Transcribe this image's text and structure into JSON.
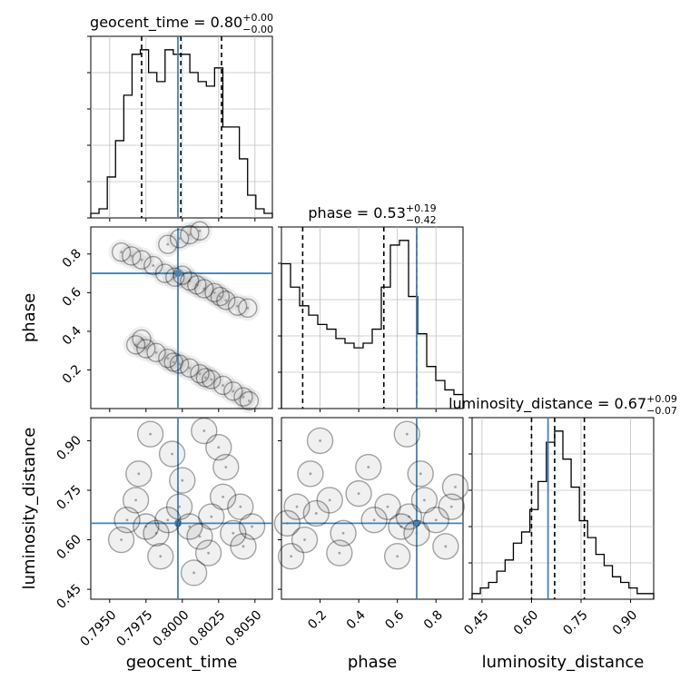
{
  "chart_data": {
    "type": "corner",
    "parameters": [
      {
        "name": "geocent_time",
        "range": [
          0.7937,
          0.8062
        ],
        "ticks": [
          0.795,
          0.7975,
          0.8,
          0.8025,
          0.805
        ],
        "tick_labels": [
          "0.7950",
          "0.7975",
          "0.8000",
          "0.8025",
          "0.8050"
        ],
        "truth": 0.7997,
        "quantiles": [
          0.7972,
          0.7999,
          0.8027
        ],
        "title_text": "geocent_time = 0.80",
        "title_sup": "+0.00",
        "title_sub": "−0.00",
        "hist_values": [
          1,
          2,
          9,
          17,
          27,
          36,
          37,
          32,
          30,
          37,
          36,
          36,
          32,
          30,
          29,
          33,
          20,
          20,
          13,
          5,
          2,
          1
        ]
      },
      {
        "name": "phase",
        "range": [
          0.0,
          0.94
        ],
        "ticks": [
          0.2,
          0.4,
          0.6,
          0.8
        ],
        "tick_labels": [
          "0.2",
          "0.4",
          "0.6",
          "0.8"
        ],
        "truth": 0.7,
        "quantiles": [
          0.11,
          0.53,
          0.7
        ],
        "title_text": "phase = 0.53",
        "title_sup": "+0.19",
        "title_sub": "−0.42",
        "hist_values": [
          31,
          26,
          22,
          20,
          18,
          17,
          15,
          14,
          13,
          14,
          17,
          26,
          35,
          36,
          24,
          16,
          9,
          6,
          4,
          3
        ]
      },
      {
        "name": "luminosity_distance",
        "range": [
          0.42,
          0.97
        ],
        "ticks": [
          0.45,
          0.6,
          0.75,
          0.9
        ],
        "tick_labels": [
          "0.45",
          "0.60",
          "0.75",
          "0.90"
        ],
        "truth": 0.65,
        "quantiles": [
          0.6,
          0.67,
          0.76
        ],
        "title_text": "luminosity_distance = 0.67",
        "title_sup": "+0.09",
        "title_sub": "−0.07",
        "hist_values": [
          1,
          2,
          3,
          5,
          7,
          10,
          12,
          16,
          21,
          28,
          30,
          25,
          20,
          14,
          11,
          8,
          6,
          4,
          3,
          2,
          1,
          1
        ]
      }
    ],
    "scatter": {
      "phase_vs_geocent_time": [
        [
          0.7972,
          0.77
        ],
        [
          0.798,
          0.74
        ],
        [
          0.7988,
          0.7
        ],
        [
          0.7995,
          0.68
        ],
        [
          0.8005,
          0.66
        ],
        [
          0.8015,
          0.62
        ],
        [
          0.8022,
          0.6
        ],
        [
          0.803,
          0.56
        ],
        [
          0.8038,
          0.53
        ],
        [
          0.8045,
          0.52
        ],
        [
          0.7958,
          0.81
        ],
        [
          0.7965,
          0.79
        ],
        [
          0.8,
          0.69
        ],
        [
          0.801,
          0.64
        ],
        [
          0.8026,
          0.58
        ],
        [
          0.7968,
          0.33
        ],
        [
          0.7975,
          0.31
        ],
        [
          0.7982,
          0.29
        ],
        [
          0.799,
          0.26
        ],
        [
          0.7998,
          0.23
        ],
        [
          0.8005,
          0.21
        ],
        [
          0.8012,
          0.18
        ],
        [
          0.802,
          0.15
        ],
        [
          0.8028,
          0.12
        ],
        [
          0.8035,
          0.09
        ],
        [
          0.8042,
          0.06
        ],
        [
          0.8046,
          0.04
        ],
        [
          0.7972,
          0.36
        ],
        [
          0.7994,
          0.24
        ],
        [
          0.8016,
          0.16
        ],
        [
          0.799,
          0.85
        ],
        [
          0.7998,
          0.88
        ],
        [
          0.8005,
          0.9
        ],
        [
          0.8012,
          0.92
        ]
      ],
      "luminosity_distance_vs_geocent_time": [
        [
          0.7962,
          0.66
        ],
        [
          0.7968,
          0.72
        ],
        [
          0.7975,
          0.64
        ],
        [
          0.7982,
          0.62
        ],
        [
          0.799,
          0.66
        ],
        [
          0.7998,
          0.7
        ],
        [
          0.8005,
          0.64
        ],
        [
          0.8012,
          0.61
        ],
        [
          0.802,
          0.67
        ],
        [
          0.8028,
          0.73
        ],
        [
          0.8035,
          0.62
        ],
        [
          0.8042,
          0.58
        ],
        [
          0.797,
          0.8
        ],
        [
          0.7985,
          0.55
        ],
        [
          0.8,
          0.78
        ],
        [
          0.8018,
          0.56
        ],
        [
          0.803,
          0.82
        ],
        [
          0.804,
          0.7
        ],
        [
          0.7958,
          0.6
        ],
        [
          0.7993,
          0.86
        ],
        [
          0.8008,
          0.5
        ],
        [
          0.8025,
          0.88
        ],
        [
          0.8048,
          0.64
        ],
        [
          0.7978,
          0.92
        ],
        [
          0.8015,
          0.93
        ]
      ],
      "luminosity_distance_vs_phase": [
        [
          0.03,
          0.65
        ],
        [
          0.08,
          0.7
        ],
        [
          0.12,
          0.6
        ],
        [
          0.18,
          0.68
        ],
        [
          0.25,
          0.72
        ],
        [
          0.32,
          0.62
        ],
        [
          0.4,
          0.74
        ],
        [
          0.48,
          0.66
        ],
        [
          0.55,
          0.7
        ],
        [
          0.62,
          0.64
        ],
        [
          0.66,
          0.67
        ],
        [
          0.7,
          0.62
        ],
        [
          0.74,
          0.72
        ],
        [
          0.8,
          0.66
        ],
        [
          0.88,
          0.7
        ],
        [
          0.05,
          0.55
        ],
        [
          0.15,
          0.8
        ],
        [
          0.3,
          0.56
        ],
        [
          0.45,
          0.82
        ],
        [
          0.6,
          0.55
        ],
        [
          0.72,
          0.8
        ],
        [
          0.85,
          0.58
        ],
        [
          0.9,
          0.76
        ],
        [
          0.2,
          0.9
        ],
        [
          0.65,
          0.92
        ]
      ]
    },
    "colors": {
      "truth": "#4682b4",
      "hist": "#000000",
      "grid": "#c0c0c0",
      "scatter": "#a0a0a0"
    }
  }
}
